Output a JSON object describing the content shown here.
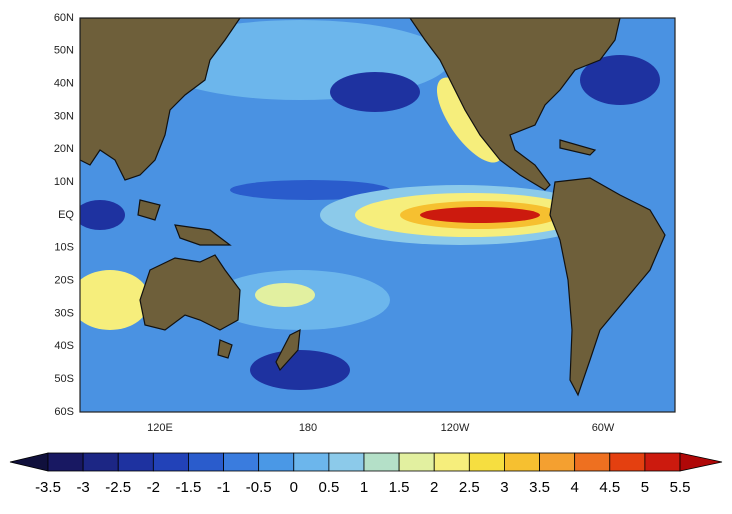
{
  "map": {
    "lat_labels": [
      "60N",
      "50N",
      "40N",
      "30N",
      "20N",
      "10N",
      "EQ",
      "10S",
      "20S",
      "30S",
      "40S",
      "50S",
      "60S"
    ],
    "lon_labels": [
      "120E",
      "180",
      "120W",
      "60W"
    ]
  },
  "colorbar": {
    "ticks": [
      -3.5,
      -3,
      -2.5,
      -2,
      -1.5,
      -1,
      -0.5,
      0,
      0.5,
      1,
      1.5,
      2,
      2.5,
      3,
      3.5,
      4,
      4.5,
      5,
      5.5
    ],
    "colors": [
      "#10103c",
      "#181862",
      "#1c2684",
      "#1e32a0",
      "#2242b8",
      "#2a5ccc",
      "#3a7cde",
      "#4a98e6",
      "#6cb6ec",
      "#8ccaea",
      "#b4e0c8",
      "#e2f0a0",
      "#f6ee7c",
      "#f6de40",
      "#f6c030",
      "#f4a030",
      "#ee7020",
      "#e44010",
      "#cc1a0e",
      "#b00808"
    ]
  }
}
